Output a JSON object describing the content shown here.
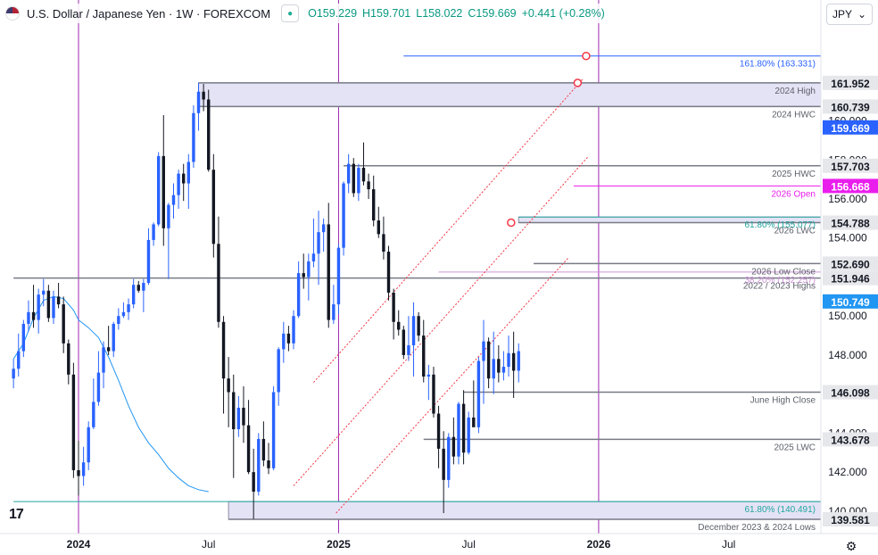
{
  "header": {
    "symbol": "U.S. Dollar / Japanese Yen · 1W · FOREXCOM",
    "open": "O159.229",
    "high": "H159.701",
    "low": "L158.022",
    "close": "C159.669",
    "change": "+0.441 (+0.28%)"
  },
  "currency_button": "JPY",
  "colors": {
    "up": "#2962ff",
    "down": "#131722",
    "ma": "#2196f3",
    "vline": "#9c27b0",
    "open_line": "#e91eec",
    "channel": "#f23645",
    "zone": "#e4e3f5",
    "price_tag": "#2962ff"
  },
  "chart_data": {
    "type": "candlestick",
    "title": "U.S. Dollar / Japanese Yen · 1W · FOREXCOM",
    "ylim": [
      138.85,
      166.2
    ],
    "y_ticks": [
      "140.000",
      "142.000",
      "144.000",
      "146.000",
      "148.000",
      "150.000",
      "152.000",
      "154.000",
      "156.000",
      "158.000",
      "160.000"
    ],
    "x_ticks": [
      "2024",
      "Jul",
      "2025",
      "Jul",
      "2026",
      "Jul"
    ],
    "x_tick_weeks": [
      0,
      26,
      52,
      78,
      104,
      130
    ],
    "first_week": -13,
    "last_week": 111,
    "candles": [
      [
        146.8,
        147.8,
        146.3,
        147.3
      ],
      [
        147.3,
        149.1,
        146.9,
        148.2
      ],
      [
        148.2,
        149.8,
        147.9,
        149.6
      ],
      [
        149.6,
        150.8,
        149.2,
        150.2
      ],
      [
        150.2,
        151.6,
        149.4,
        149.8
      ],
      [
        149.8,
        151.4,
        149.1,
        151.1
      ],
      [
        151.1,
        151.9,
        150.5,
        151.3
      ],
      [
        151.3,
        151.6,
        149.7,
        149.9
      ],
      [
        149.9,
        151.3,
        149.6,
        151.0
      ],
      [
        151.0,
        151.7,
        150.4,
        150.6
      ],
      [
        150.6,
        151.0,
        148.1,
        148.6
      ],
      [
        148.6,
        148.8,
        146.5,
        147.0
      ],
      [
        147.0,
        147.6,
        141.7,
        142.1
      ],
      [
        142.1,
        143.6,
        140.8,
        141.8
      ],
      [
        141.8,
        143.3,
        141.3,
        142.5
      ],
      [
        142.5,
        144.6,
        142.1,
        144.3
      ],
      [
        144.3,
        146.8,
        144.2,
        145.6
      ],
      [
        145.6,
        148.2,
        145.4,
        147.1
      ],
      [
        147.1,
        148.7,
        146.3,
        148.4
      ],
      [
        148.4,
        149.5,
        148.0,
        148.2
      ],
      [
        148.2,
        149.7,
        147.9,
        149.6
      ],
      [
        149.6,
        150.4,
        149.3,
        150.0
      ],
      [
        150.0,
        150.7,
        149.9,
        150.2
      ],
      [
        150.2,
        150.9,
        149.8,
        150.6
      ],
      [
        150.6,
        151.9,
        150.4,
        151.6
      ],
      [
        151.6,
        151.8,
        151.2,
        151.3
      ],
      [
        151.3,
        151.9,
        150.2,
        151.7
      ],
      [
        151.7,
        154.5,
        151.6,
        153.9
      ],
      [
        153.9,
        154.8,
        153.6,
        154.7
      ],
      [
        154.7,
        158.4,
        154.6,
        158.2
      ],
      [
        158.2,
        160.3,
        153.6,
        154.5
      ],
      [
        154.5,
        155.8,
        151.9,
        155.7
      ],
      [
        155.7,
        156.8,
        155.0,
        156.2
      ],
      [
        156.2,
        157.5,
        155.5,
        157.3
      ],
      [
        157.3,
        157.8,
        155.9,
        156.8
      ],
      [
        156.8,
        158.3,
        155.5,
        157.9
      ],
      [
        157.9,
        160.8,
        157.6,
        160.4
      ],
      [
        160.4,
        161.95,
        159.5,
        161.5
      ],
      [
        161.5,
        161.9,
        160.5,
        161.1
      ],
      [
        161.1,
        161.6,
        157.4,
        157.5
      ],
      [
        157.5,
        158.3,
        153.0,
        153.7
      ],
      [
        153.7,
        155.1,
        149.4,
        149.7
      ],
      [
        149.7,
        150.0,
        145.0,
        146.8
      ],
      [
        146.8,
        147.9,
        144.3,
        146.1
      ],
      [
        146.1,
        147.0,
        141.7,
        144.2
      ],
      [
        144.2,
        145.9,
        143.8,
        145.3
      ],
      [
        145.3,
        146.4,
        143.5,
        144.4
      ],
      [
        144.4,
        145.7,
        141.9,
        142.0
      ],
      [
        142.0,
        143.2,
        139.6,
        141.0
      ],
      [
        141.0,
        144.0,
        140.8,
        143.7
      ],
      [
        143.7,
        144.6,
        142.3,
        142.6
      ],
      [
        142.6,
        143.5,
        141.9,
        142.2
      ],
      [
        142.2,
        146.4,
        142.1,
        146.1
      ],
      [
        146.1,
        148.4,
        145.4,
        148.3
      ],
      [
        148.3,
        149.7,
        147.6,
        149.1
      ],
      [
        149.1,
        149.5,
        148.2,
        148.6
      ],
      [
        148.6,
        150.3,
        148.3,
        150.0
      ],
      [
        150.0,
        152.8,
        149.9,
        152.2
      ],
      [
        152.2,
        153.2,
        151.4,
        152.0
      ],
      [
        152.0,
        153.2,
        150.8,
        152.8
      ],
      [
        152.8,
        155.0,
        152.5,
        153.2
      ],
      [
        153.2,
        155.4,
        151.6,
        154.3
      ],
      [
        154.3,
        155.0,
        153.3,
        154.7
      ],
      [
        154.7,
        155.8,
        149.4,
        149.8
      ],
      [
        149.8,
        151.6,
        149.6,
        150.6
      ],
      [
        150.6,
        153.7,
        150.1,
        153.5
      ],
      [
        153.5,
        156.9,
        153.1,
        156.8
      ],
      [
        156.8,
        158.3,
        156.3,
        157.8
      ],
      [
        157.8,
        158.1,
        156.1,
        156.3
      ],
      [
        156.3,
        157.8,
        155.9,
        157.6
      ],
      [
        157.6,
        158.9,
        156.7,
        156.9
      ],
      [
        156.9,
        157.3,
        156.0,
        156.5
      ],
      [
        156.5,
        157.2,
        154.6,
        154.9
      ],
      [
        154.9,
        155.6,
        154.0,
        154.2
      ],
      [
        154.2,
        155.1,
        152.9,
        153.3
      ],
      [
        153.3,
        153.6,
        150.8,
        151.2
      ],
      [
        151.2,
        151.4,
        148.8,
        149.7
      ],
      [
        149.7,
        150.3,
        149.0,
        149.3
      ],
      [
        149.3,
        149.5,
        147.8,
        148.0
      ],
      [
        148.0,
        150.0,
        147.7,
        148.5
      ],
      [
        148.5,
        150.7,
        146.9,
        150.0
      ],
      [
        150.0,
        150.2,
        148.7,
        149.0
      ],
      [
        149.0,
        149.8,
        146.6,
        146.9
      ],
      [
        146.9,
        147.5,
        145.7,
        147.0
      ],
      [
        147.0,
        147.4,
        144.8,
        145.0
      ],
      [
        145.0,
        145.4,
        142.2,
        143.2
      ],
      [
        143.2,
        144.1,
        139.9,
        141.6
      ],
      [
        141.6,
        144.0,
        141.2,
        143.8
      ],
      [
        143.8,
        144.8,
        142.4,
        142.8
      ],
      [
        142.8,
        145.6,
        142.4,
        145.5
      ],
      [
        145.5,
        146.2,
        142.4,
        143.0
      ],
      [
        143.0,
        145.1,
        142.9,
        144.8
      ],
      [
        144.8,
        146.7,
        144.4,
        144.3
      ],
      [
        144.3,
        147.9,
        144.0,
        147.7
      ],
      [
        147.7,
        149.8,
        145.5,
        148.7
      ],
      [
        148.7,
        148.9,
        146.3,
        146.8
      ],
      [
        146.8,
        149.2,
        146.0,
        147.8
      ],
      [
        147.8,
        148.5,
        146.6,
        147.1
      ],
      [
        147.1,
        148.2,
        146.7,
        147.4
      ],
      [
        147.4,
        149.0,
        146.9,
        148.1
      ],
      [
        148.1,
        149.2,
        145.8,
        147.2
      ],
      [
        147.2,
        148.6,
        146.6,
        148.2
      ]
    ],
    "moving_average": [
      [
        -13,
        147.8
      ],
      [
        -11,
        148.6
      ],
      [
        -9,
        149.9
      ],
      [
        -7,
        150.8
      ],
      [
        -5,
        151.0
      ],
      [
        -3,
        150.9
      ],
      [
        -1,
        150.3
      ],
      [
        0,
        149.8
      ],
      [
        2,
        149.4
      ],
      [
        4,
        148.9
      ],
      [
        6,
        147.9
      ],
      [
        8,
        146.7
      ],
      [
        10,
        145.4
      ],
      [
        12,
        144.3
      ],
      [
        14,
        143.5
      ],
      [
        16,
        142.9
      ],
      [
        18,
        142.2
      ],
      [
        20,
        141.7
      ],
      [
        22,
        141.3
      ],
      [
        24,
        141.1
      ],
      [
        26,
        141.0
      ]
    ],
    "trendlines": [
      [
        [
          51.5,
          139.9
        ],
        [
          98,
          153.0
        ]
      ],
      [
        [
          43,
          141.3
        ],
        [
          102,
          158.2
        ]
      ],
      [
        [
          47,
          146.6
        ],
        [
          101,
          162.2
        ]
      ]
    ],
    "zones": [
      {
        "range": [
          160.739,
          161.952
        ],
        "from_week": 24
      },
      {
        "range": [
          139.581,
          140.491
        ],
        "from_week": 30
      },
      {
        "range": [
          154.788,
          155.077
        ],
        "from_week": 88
      }
    ],
    "levels": [
      {
        "value": 163.331,
        "label": "161.80% (163.331)",
        "color": "#2962ff",
        "tag": false,
        "from_week": 65
      },
      {
        "value": 161.952,
        "label": "2024 High",
        "color": "#787b86",
        "tag": true,
        "from_week": 24
      },
      {
        "value": 160.739,
        "label": "2024 HWC",
        "color": "#787b86",
        "tag": true,
        "from_week": 24
      },
      {
        "value": 157.703,
        "label": "2025 HWC",
        "color": "#787b86",
        "tag": true,
        "from_week": 53
      },
      {
        "value": 156.668,
        "label": "2026 Open",
        "color": "#e91eec",
        "tag": true,
        "from_week": 99
      },
      {
        "value": 155.077,
        "label": "61.80% (155.077)",
        "color": "#22a5a0",
        "tag": false,
        "from_week": 88
      },
      {
        "value": 154.788,
        "label": "2026 LWC",
        "color": "#787b86",
        "tag": true,
        "from_week": 88
      },
      {
        "value": 152.69,
        "label": "2026 Low Close",
        "color": "#787b86",
        "tag": true,
        "from_week": 91
      },
      {
        "value": 152.257,
        "label": "38.20% (152.257)",
        "color": "#ce93d8",
        "tag": false,
        "from_week": 72
      },
      {
        "value": 151.946,
        "label": "2022 / 2023 Highs",
        "color": "#787b86",
        "tag": true,
        "from_week": -13
      },
      {
        "value": 146.098,
        "label": "June High Close",
        "color": "#787b86",
        "tag": true,
        "from_week": 77
      },
      {
        "value": 143.678,
        "label": "2025 LWC",
        "color": "#787b86",
        "tag": true,
        "from_week": 69
      },
      {
        "value": 140.491,
        "label": "61.80% (140.491)",
        "color": "#22a5a0",
        "tag": false,
        "from_week": -13
      },
      {
        "value": 139.581,
        "label": "December 2023 & 2024 Lows",
        "color": "#787b86",
        "tag": true,
        "from_week": 30
      }
    ],
    "ma_value": "150.749",
    "last_price": "159.669",
    "vlines": [
      0,
      52,
      104
    ]
  }
}
